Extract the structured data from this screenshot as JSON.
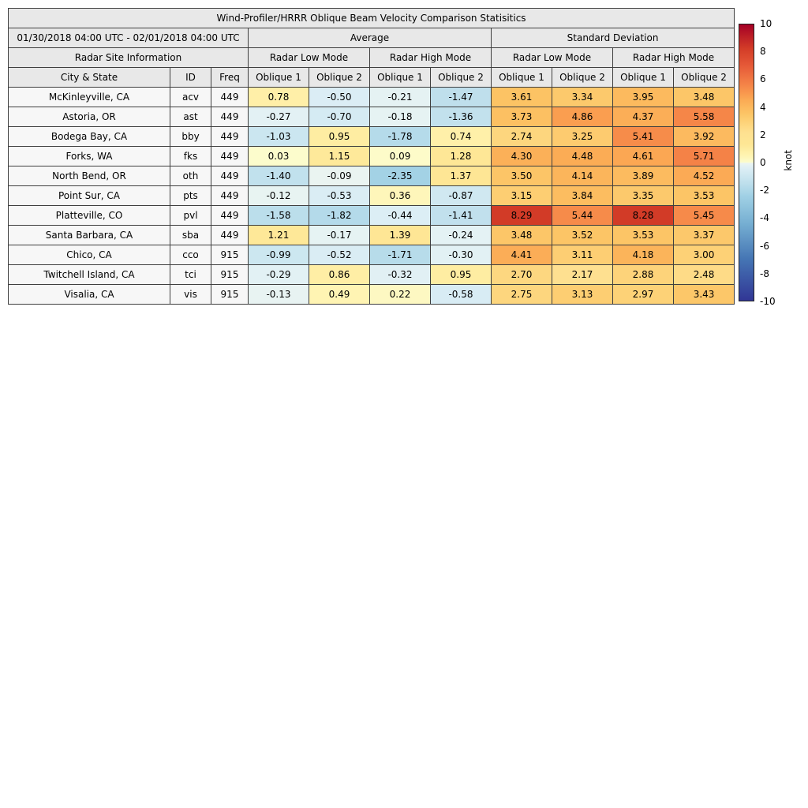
{
  "title": "Wind-Profiler/HRRR Oblique Beam Velocity Comparison Statisitics",
  "header": {
    "date_range": "01/30/2018 04:00 UTC - 02/01/2018 04:00 UTC",
    "average_label": "Average",
    "std_label": "Standard Deviation",
    "site_info_label": "Radar Site Information",
    "low_mode_label": "Radar Low Mode",
    "high_mode_label": "Radar High Mode",
    "city_label": "City & State",
    "id_label": "ID",
    "freq_label": "Freq",
    "oblique1_label": "Oblique 1",
    "oblique2_label": "Oblique 2"
  },
  "colorbar": {
    "label": "knot",
    "min": -10,
    "max": 10,
    "ticks": [
      10,
      8,
      6,
      4,
      2,
      0,
      -2,
      -4,
      -6,
      -8,
      -10
    ]
  },
  "colormap": {
    "stops": [
      {
        "v": -10,
        "c": "#313695"
      },
      {
        "v": -7,
        "c": "#4575b4"
      },
      {
        "v": -4.5,
        "c": "#74add1"
      },
      {
        "v": -2.4,
        "c": "#a1d1e5"
      },
      {
        "v": -1.5,
        "c": "#bedfec"
      },
      {
        "v": -0.9,
        "c": "#cfe8f1"
      },
      {
        "v": -0.45,
        "c": "#dceef5"
      },
      {
        "v": -0.15,
        "c": "#e7f3f3"
      },
      {
        "v": -0.02,
        "c": "#edf6ef"
      },
      {
        "v": 0,
        "c": "#fcfcce"
      },
      {
        "v": 0.5,
        "c": "#fff4b2"
      },
      {
        "v": 1.3,
        "c": "#fee795"
      },
      {
        "v": 2.2,
        "c": "#fee090"
      },
      {
        "v": 3.0,
        "c": "#fdd176"
      },
      {
        "v": 3.6,
        "c": "#fcc364"
      },
      {
        "v": 4.5,
        "c": "#fbab55"
      },
      {
        "v": 5.0,
        "c": "#f9994e"
      },
      {
        "v": 5.7,
        "c": "#f48247"
      },
      {
        "v": 7.0,
        "c": "#e65a38"
      },
      {
        "v": 8.3,
        "c": "#d23b27"
      },
      {
        "v": 10,
        "c": "#a50026"
      }
    ]
  },
  "chart_data": {
    "type": "heatmap",
    "title": "Wind-Profiler/HRRR Oblique Beam Velocity Comparison Statisitics",
    "subtitle": "01/30/2018 04:00 UTC - 02/01/2018 04:00 UTC",
    "colorbar_label": "knot",
    "color_range": [
      -10,
      10
    ],
    "column_headers": [
      "Average | Radar Low Mode | Oblique 1",
      "Average | Radar Low Mode | Oblique 2",
      "Average | Radar High Mode | Oblique 1",
      "Average | Radar High Mode | Oblique 2",
      "Standard Deviation | Radar Low Mode | Oblique 1",
      "Standard Deviation | Radar Low Mode | Oblique 2",
      "Standard Deviation | Radar High Mode | Oblique 1",
      "Standard Deviation | Radar High Mode | Oblique 2"
    ],
    "rows": [
      {
        "city": "McKinleyville, CA",
        "id": "acv",
        "freq": "449",
        "values": [
          0.78,
          -0.5,
          -0.21,
          -1.47,
          3.61,
          3.34,
          3.95,
          3.48
        ]
      },
      {
        "city": "Astoria, OR",
        "id": "ast",
        "freq": "449",
        "values": [
          -0.27,
          -0.7,
          -0.18,
          -1.36,
          3.73,
          4.86,
          4.37,
          5.58
        ]
      },
      {
        "city": "Bodega Bay, CA",
        "id": "bby",
        "freq": "449",
        "values": [
          -1.03,
          0.95,
          -1.78,
          0.74,
          2.74,
          3.25,
          5.41,
          3.92
        ]
      },
      {
        "city": "Forks, WA",
        "id": "fks",
        "freq": "449",
        "values": [
          0.03,
          1.15,
          0.09,
          1.28,
          4.3,
          4.48,
          4.61,
          5.71
        ]
      },
      {
        "city": "North Bend, OR",
        "id": "oth",
        "freq": "449",
        "values": [
          -1.4,
          -0.09,
          -2.35,
          1.37,
          3.5,
          4.14,
          3.89,
          4.52
        ]
      },
      {
        "city": "Point Sur, CA",
        "id": "pts",
        "freq": "449",
        "values": [
          -0.12,
          -0.53,
          0.36,
          -0.87,
          3.15,
          3.84,
          3.35,
          3.53
        ]
      },
      {
        "city": "Platteville, CO",
        "id": "pvl",
        "freq": "449",
        "values": [
          -1.58,
          -1.82,
          -0.44,
          -1.41,
          8.29,
          5.44,
          8.28,
          5.45
        ]
      },
      {
        "city": "Santa Barbara, CA",
        "id": "sba",
        "freq": "449",
        "values": [
          1.21,
          -0.17,
          1.39,
          -0.24,
          3.48,
          3.52,
          3.53,
          3.37
        ]
      },
      {
        "city": "Chico, CA",
        "id": "cco",
        "freq": "915",
        "values": [
          -0.99,
          -0.52,
          -1.71,
          -0.3,
          4.41,
          3.11,
          4.18,
          3.0
        ]
      },
      {
        "city": "Twitchell Island, CA",
        "id": "tci",
        "freq": "915",
        "values": [
          -0.29,
          0.86,
          -0.32,
          0.95,
          2.7,
          2.17,
          2.88,
          2.48
        ]
      },
      {
        "city": "Visalia, CA",
        "id": "vis",
        "freq": "915",
        "values": [
          -0.13,
          0.49,
          0.22,
          -0.58,
          2.75,
          3.13,
          2.97,
          3.43
        ]
      }
    ]
  }
}
